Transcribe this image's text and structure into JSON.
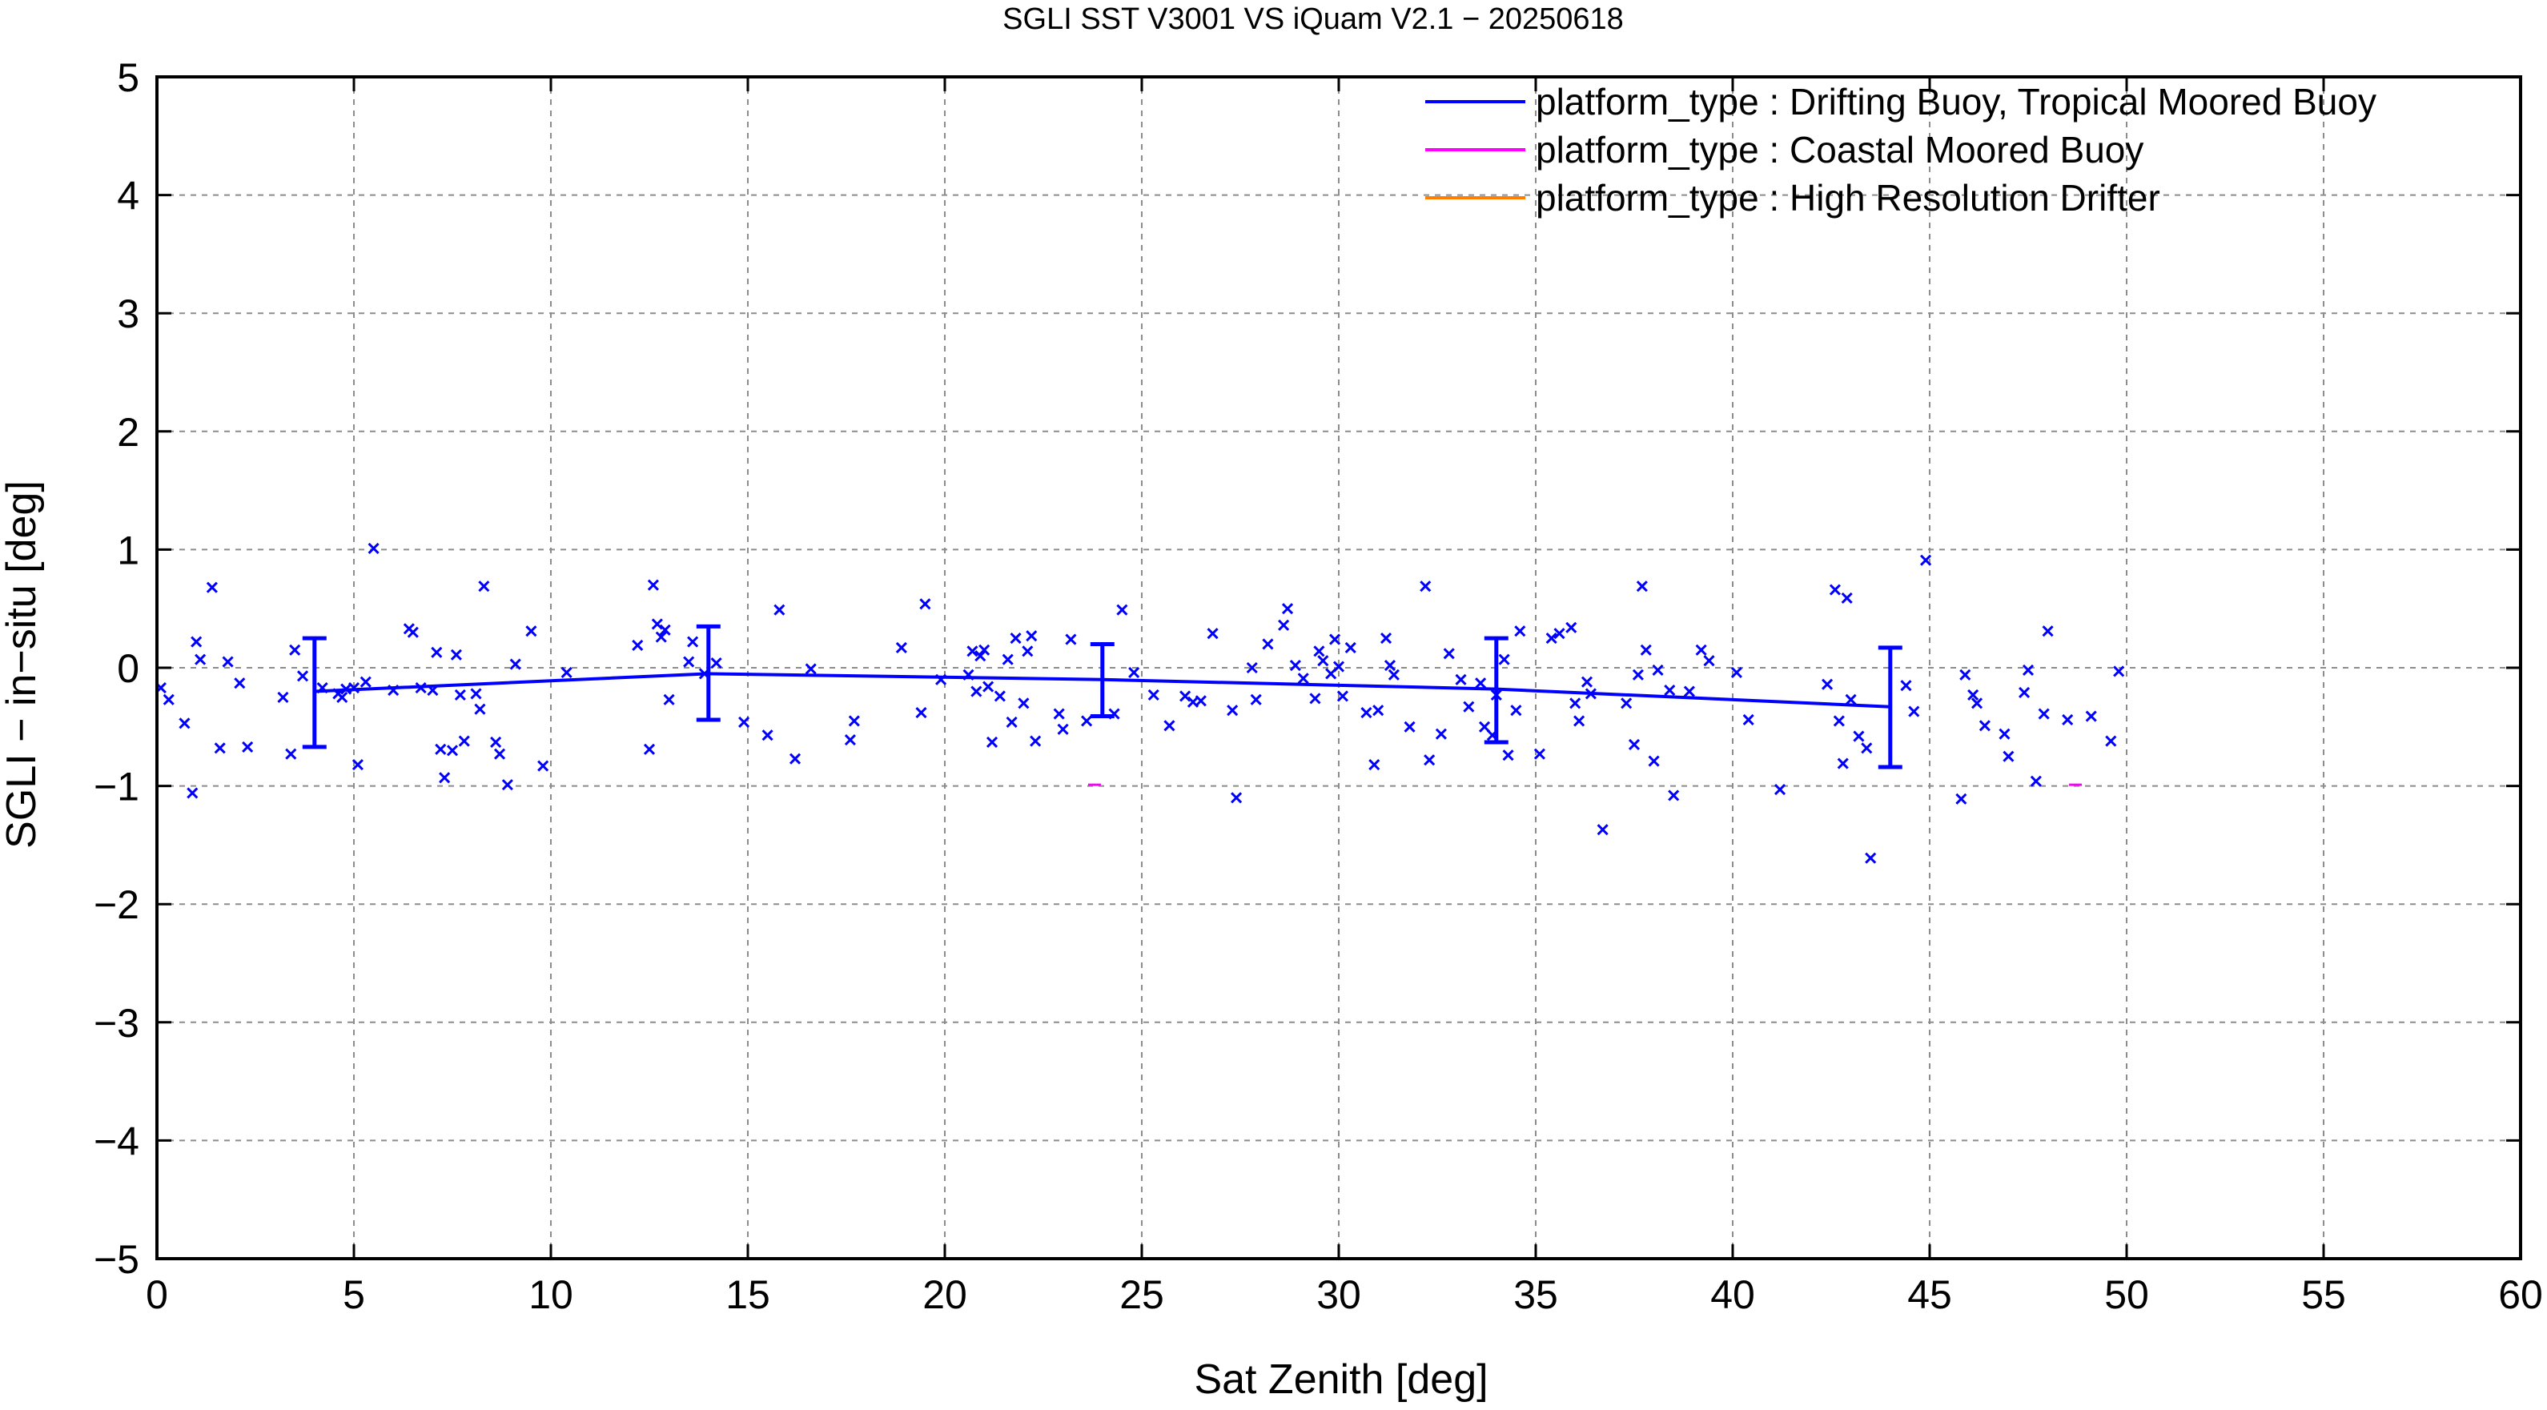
{
  "chart_data": {
    "type": "scatter",
    "title": "SGLI SST V3001 VS iQuam V2.1  − 20250618",
    "xlabel": "Sat Zenith [deg]",
    "ylabel": "SGLI − in−situ [deg]",
    "xlim": [
      0,
      60
    ],
    "ylim": [
      -5,
      5
    ],
    "xticks": [
      0,
      5,
      10,
      15,
      20,
      25,
      30,
      35,
      40,
      45,
      50,
      55,
      60
    ],
    "yticks": [
      -5,
      -4,
      -3,
      -2,
      -1,
      0,
      1,
      2,
      3,
      4,
      5
    ],
    "grid": true,
    "legend_position": "top-right",
    "legend": [
      {
        "label": "platform_type : Drifting Buoy, Tropical Moored Buoy",
        "color": "#0000ff"
      },
      {
        "label": "platform_type : Coastal Moored Buoy",
        "color": "#ff00ff"
      },
      {
        "label": "platform_type : High Resolution Drifter",
        "color": "#ff8000"
      }
    ],
    "series": [
      {
        "label": "platform_type : Drifting Buoy, Tropical Moored Buoy",
        "color": "#0000ff",
        "points": [
          [
            0.1,
            -0.17
          ],
          [
            0.3,
            -0.27
          ],
          [
            0.7,
            -0.47
          ],
          [
            0.9,
            -1.06
          ],
          [
            1.0,
            0.22
          ],
          [
            1.1,
            0.07
          ],
          [
            1.4,
            0.68
          ],
          [
            1.6,
            -0.68
          ],
          [
            1.8,
            0.05
          ],
          [
            2.1,
            -0.13
          ],
          [
            2.3,
            -0.67
          ],
          [
            3.2,
            -0.25
          ],
          [
            3.4,
            -0.73
          ],
          [
            3.5,
            0.15
          ],
          [
            3.7,
            -0.07
          ],
          [
            4.2,
            -0.17
          ],
          [
            4.6,
            -0.22
          ],
          [
            4.7,
            -0.25
          ],
          [
            4.8,
            -0.18
          ],
          [
            5.0,
            -0.17
          ],
          [
            5.1,
            -0.82
          ],
          [
            5.3,
            -0.12
          ],
          [
            5.5,
            1.01
          ],
          [
            6.0,
            -0.19
          ],
          [
            6.4,
            0.33
          ],
          [
            6.5,
            0.3
          ],
          [
            6.7,
            -0.17
          ],
          [
            7.0,
            -0.19
          ],
          [
            7.1,
            0.13
          ],
          [
            7.2,
            -0.69
          ],
          [
            7.3,
            -0.93
          ],
          [
            7.5,
            -0.7
          ],
          [
            7.6,
            0.11
          ],
          [
            7.7,
            -0.23
          ],
          [
            7.8,
            -0.62
          ],
          [
            8.1,
            -0.22
          ],
          [
            8.2,
            -0.35
          ],
          [
            8.3,
            0.69
          ],
          [
            8.6,
            -0.63
          ],
          [
            8.7,
            -0.73
          ],
          [
            8.9,
            -0.99
          ],
          [
            9.1,
            0.03
          ],
          [
            9.5,
            0.31
          ],
          [
            9.8,
            -0.83
          ],
          [
            10.4,
            -0.04
          ],
          [
            12.2,
            0.19
          ],
          [
            12.5,
            -0.69
          ],
          [
            12.6,
            0.7
          ],
          [
            12.7,
            0.37
          ],
          [
            12.8,
            0.26
          ],
          [
            12.9,
            0.32
          ],
          [
            13.0,
            -0.27
          ],
          [
            13.5,
            0.05
          ],
          [
            13.6,
            0.22
          ],
          [
            13.9,
            -0.05
          ],
          [
            14.2,
            0.04
          ],
          [
            14.9,
            -0.46
          ],
          [
            15.5,
            -0.57
          ],
          [
            15.8,
            0.49
          ],
          [
            16.2,
            -0.77
          ],
          [
            16.6,
            -0.01
          ],
          [
            17.6,
            -0.61
          ],
          [
            17.7,
            -0.45
          ],
          [
            18.9,
            0.17
          ],
          [
            19.4,
            -0.38
          ],
          [
            19.5,
            0.54
          ],
          [
            19.9,
            -0.1
          ],
          [
            20.6,
            -0.06
          ],
          [
            20.7,
            0.14
          ],
          [
            20.8,
            -0.2
          ],
          [
            20.9,
            0.1
          ],
          [
            21.0,
            0.15
          ],
          [
            21.1,
            -0.16
          ],
          [
            21.2,
            -0.63
          ],
          [
            21.4,
            -0.24
          ],
          [
            21.6,
            0.07
          ],
          [
            21.7,
            -0.46
          ],
          [
            21.8,
            0.25
          ],
          [
            22.0,
            -0.3
          ],
          [
            22.1,
            0.14
          ],
          [
            22.2,
            0.27
          ],
          [
            22.3,
            -0.62
          ],
          [
            22.9,
            -0.39
          ],
          [
            23.0,
            -0.52
          ],
          [
            23.2,
            0.24
          ],
          [
            23.6,
            -0.45
          ],
          [
            24.3,
            -0.39
          ],
          [
            24.5,
            0.49
          ],
          [
            24.8,
            -0.04
          ],
          [
            25.3,
            -0.23
          ],
          [
            25.7,
            -0.49
          ],
          [
            26.1,
            -0.24
          ],
          [
            26.3,
            -0.29
          ],
          [
            26.5,
            -0.28
          ],
          [
            26.8,
            0.29
          ],
          [
            27.3,
            -0.36
          ],
          [
            27.4,
            -1.1
          ],
          [
            27.8,
            0.0
          ],
          [
            27.9,
            -0.27
          ],
          [
            28.2,
            0.2
          ],
          [
            28.6,
            0.36
          ],
          [
            28.7,
            0.5
          ],
          [
            28.9,
            0.02
          ],
          [
            29.1,
            -0.09
          ],
          [
            29.4,
            -0.26
          ],
          [
            29.5,
            0.14
          ],
          [
            29.6,
            0.06
          ],
          [
            29.8,
            -0.05
          ],
          [
            29.9,
            0.24
          ],
          [
            30.0,
            0.01
          ],
          [
            30.1,
            -0.24
          ],
          [
            30.3,
            0.17
          ],
          [
            30.7,
            -0.38
          ],
          [
            30.9,
            -0.82
          ],
          [
            31.0,
            -0.36
          ],
          [
            31.2,
            0.25
          ],
          [
            31.3,
            0.02
          ],
          [
            31.4,
            -0.06
          ],
          [
            31.8,
            -0.5
          ],
          [
            32.2,
            0.69
          ],
          [
            32.3,
            -0.78
          ],
          [
            32.6,
            -0.56
          ],
          [
            32.8,
            0.12
          ],
          [
            33.1,
            -0.1
          ],
          [
            33.3,
            -0.33
          ],
          [
            33.6,
            -0.13
          ],
          [
            33.7,
            -0.5
          ],
          [
            33.9,
            -0.57
          ],
          [
            34.0,
            -0.23
          ],
          [
            34.2,
            0.07
          ],
          [
            34.3,
            -0.74
          ],
          [
            34.5,
            -0.36
          ],
          [
            34.6,
            0.31
          ],
          [
            35.1,
            -0.73
          ],
          [
            35.4,
            0.25
          ],
          [
            35.6,
            0.29
          ],
          [
            35.9,
            0.34
          ],
          [
            36.0,
            -0.3
          ],
          [
            36.1,
            -0.45
          ],
          [
            36.3,
            -0.12
          ],
          [
            36.4,
            -0.22
          ],
          [
            36.7,
            -1.37
          ],
          [
            37.3,
            -0.3
          ],
          [
            37.5,
            -0.65
          ],
          [
            37.6,
            -0.06
          ],
          [
            37.7,
            0.69
          ],
          [
            37.8,
            0.15
          ],
          [
            38.0,
            -0.79
          ],
          [
            38.1,
            -0.02
          ],
          [
            38.4,
            -0.19
          ],
          [
            38.5,
            -1.08
          ],
          [
            38.9,
            -0.2
          ],
          [
            39.2,
            0.15
          ],
          [
            39.4,
            0.06
          ],
          [
            40.1,
            -0.04
          ],
          [
            40.4,
            -0.44
          ],
          [
            41.2,
            -1.03
          ],
          [
            42.4,
            -0.14
          ],
          [
            42.6,
            0.66
          ],
          [
            42.7,
            -0.45
          ],
          [
            42.8,
            -0.81
          ],
          [
            42.9,
            0.59
          ],
          [
            43.0,
            -0.27
          ],
          [
            43.2,
            -0.58
          ],
          [
            43.4,
            -0.68
          ],
          [
            43.5,
            -1.61
          ],
          [
            44.4,
            -0.15
          ],
          [
            44.6,
            -0.37
          ],
          [
            44.9,
            0.91
          ],
          [
            45.8,
            -1.11
          ],
          [
            45.9,
            -0.06
          ],
          [
            46.1,
            -0.23
          ],
          [
            46.2,
            -0.3
          ],
          [
            46.4,
            -0.49
          ],
          [
            46.9,
            -0.56
          ],
          [
            47.0,
            -0.75
          ],
          [
            47.4,
            -0.21
          ],
          [
            47.5,
            -0.02
          ],
          [
            47.7,
            -0.96
          ],
          [
            47.9,
            -0.39
          ],
          [
            48.0,
            0.31
          ],
          [
            48.5,
            -0.44
          ],
          [
            49.1,
            -0.41
          ],
          [
            49.6,
            -0.62
          ],
          [
            49.8,
            -0.03
          ]
        ]
      },
      {
        "label": "platform_type : Coastal Moored Buoy",
        "color": "#ff00ff",
        "points": [
          [
            23.8,
            -0.99
          ],
          [
            48.7,
            -0.99
          ]
        ]
      },
      {
        "label": "platform_type : High Resolution Drifter",
        "color": "#ff8000",
        "points": []
      }
    ],
    "mean_line": {
      "color": "#0000ff",
      "x": [
        4,
        14,
        24,
        34,
        44
      ],
      "y": [
        -0.2,
        -0.05,
        -0.1,
        -0.18,
        -0.33
      ],
      "err_low": [
        -0.67,
        -0.44,
        -0.41,
        -0.63,
        -0.84
      ],
      "err_high": [
        0.25,
        0.35,
        0.2,
        0.25,
        0.17
      ]
    }
  }
}
